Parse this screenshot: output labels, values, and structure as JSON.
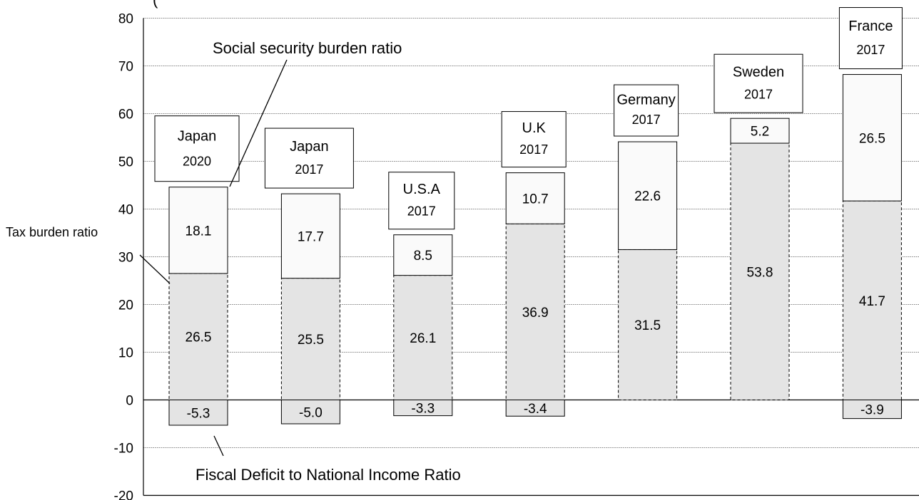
{
  "chart_data": {
    "type": "bar",
    "stacked": true,
    "title_partial": "(",
    "ylim": [
      -20,
      80
    ],
    "yticks": [
      -20,
      -10,
      0,
      10,
      20,
      30,
      40,
      50,
      60,
      70,
      80
    ],
    "grid": true,
    "categories": [
      {
        "name": "Japan",
        "year": "2020"
      },
      {
        "name": "Japan",
        "year": "2017"
      },
      {
        "name": "U.S.A",
        "year": "2017"
      },
      {
        "name": "U.K",
        "year": "2017"
      },
      {
        "name": "Germany",
        "year": "2017"
      },
      {
        "name": "Sweden",
        "year": "2017"
      },
      {
        "name": "France",
        "year": "2017"
      }
    ],
    "series": [
      {
        "name": "Tax burden ratio",
        "color": "#e4e4e4",
        "values": [
          26.5,
          25.5,
          26.1,
          36.9,
          31.5,
          53.8,
          41.7
        ]
      },
      {
        "name": "Social security burden ratio",
        "color": "#fafafa",
        "values": [
          18.1,
          17.7,
          8.5,
          10.7,
          22.6,
          5.2,
          26.5
        ]
      },
      {
        "name": "Fiscal Deficit to National Income Ratio",
        "color": "#e4e4e4",
        "values": [
          -5.3,
          -5.0,
          -3.3,
          -3.4,
          null,
          null,
          -3.9
        ]
      }
    ],
    "labels": [
      [
        "26.5",
        "25.5",
        "26.1",
        "36.9",
        "31.5",
        "53.8",
        "41.7"
      ],
      [
        "18.1",
        "17.7",
        "8.5",
        "10.7",
        "22.6",
        "5.2",
        "26.5"
      ],
      [
        "-5.3",
        "-5.0",
        "-3.3",
        "-3.4",
        "",
        "",
        "-3.9"
      ]
    ],
    "annotations": {
      "social": "Social security burden ratio",
      "tax": "Tax burden  ratio",
      "deficit": "Fiscal Deficit to National Income Ratio"
    }
  }
}
